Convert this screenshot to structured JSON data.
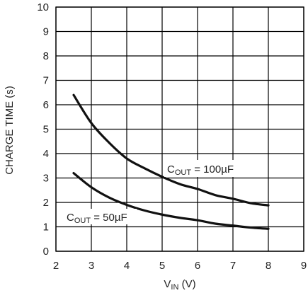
{
  "chart_data": {
    "type": "line",
    "xlabel": {
      "main": "V",
      "sub": "IN",
      "unit": " (V)"
    },
    "ylabel": "CHARGE TIME (s)",
    "xlim": [
      2,
      9
    ],
    "ylim": [
      0,
      10
    ],
    "x_ticks": [
      "2",
      "3",
      "4",
      "5",
      "6",
      "7",
      "8",
      "9"
    ],
    "y_ticks": [
      "0",
      "1",
      "2",
      "3",
      "4",
      "5",
      "6",
      "7",
      "8",
      "9",
      "10"
    ],
    "grid": true,
    "series": [
      {
        "label": {
          "main": "C",
          "sub": "OUT",
          "rest": " = 100µF"
        },
        "x": [
          2.5,
          3.0,
          3.5,
          4.0,
          4.5,
          5.0,
          5.5,
          6.0,
          6.5,
          7.0,
          7.5,
          8.0
        ],
        "y": [
          6.4,
          5.25,
          4.45,
          3.8,
          3.4,
          3.05,
          2.75,
          2.55,
          2.3,
          2.15,
          1.97,
          1.88
        ]
      },
      {
        "label": {
          "main": "C",
          "sub": "OUT",
          "rest": " = 50µF"
        },
        "x": [
          2.5,
          3.0,
          3.5,
          4.0,
          4.5,
          5.0,
          5.5,
          6.0,
          6.5,
          7.0,
          7.5,
          8.0
        ],
        "y": [
          3.2,
          2.62,
          2.2,
          1.9,
          1.67,
          1.5,
          1.37,
          1.27,
          1.13,
          1.05,
          0.97,
          0.92
        ]
      }
    ]
  }
}
